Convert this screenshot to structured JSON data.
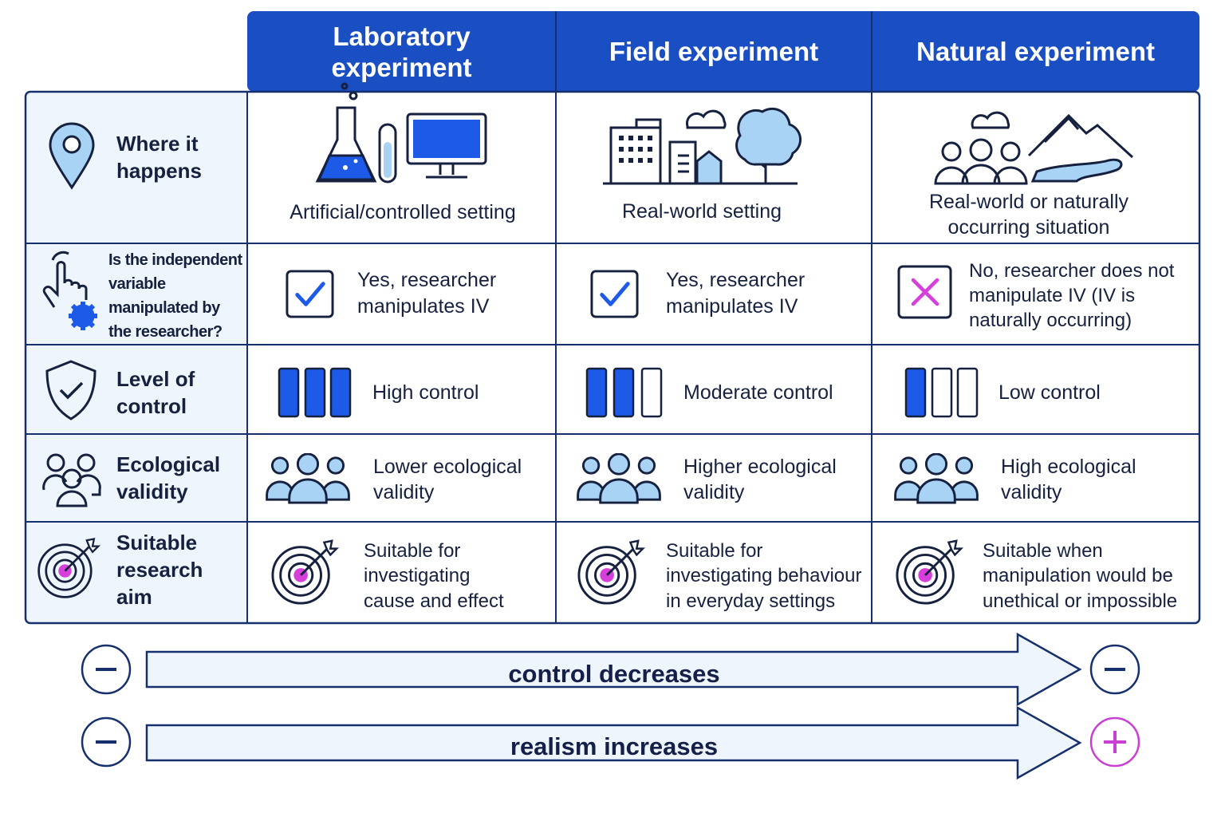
{
  "header": {
    "columns": [
      "Laboratory experiment",
      "Field experiment",
      "Natural experiment"
    ]
  },
  "table": {
    "rows": [
      {
        "label": "Where it happens",
        "cells": [
          "Artificial/controlled setting",
          "Real-world setting",
          "Real-world or naturally occurring situation"
        ]
      },
      {
        "label": "Is the independent variable manipulated by the researcher?",
        "cells": [
          "Yes, researcher manipulates IV",
          "Yes, researcher manipulates IV",
          "No, researcher does not manipulate IV (IV is naturally occurring)"
        ]
      },
      {
        "label": "Level of control",
        "cells": [
          "High control",
          "Moderate control",
          "Low control"
        ]
      },
      {
        "label": "Ecological validity",
        "cells": [
          "Lower ecological validity",
          "Higher ecological validity",
          "High ecological validity"
        ]
      },
      {
        "label": "Suitable research aim",
        "cells": [
          "Suitable for investigating cause and effect",
          "Suitable for investigating behaviour in everyday settings",
          "Suitable when manipulation would be unethical or impossible"
        ]
      }
    ]
  },
  "arrows": [
    {
      "label": "control decreases"
    },
    {
      "label": "realism increases"
    }
  ]
}
